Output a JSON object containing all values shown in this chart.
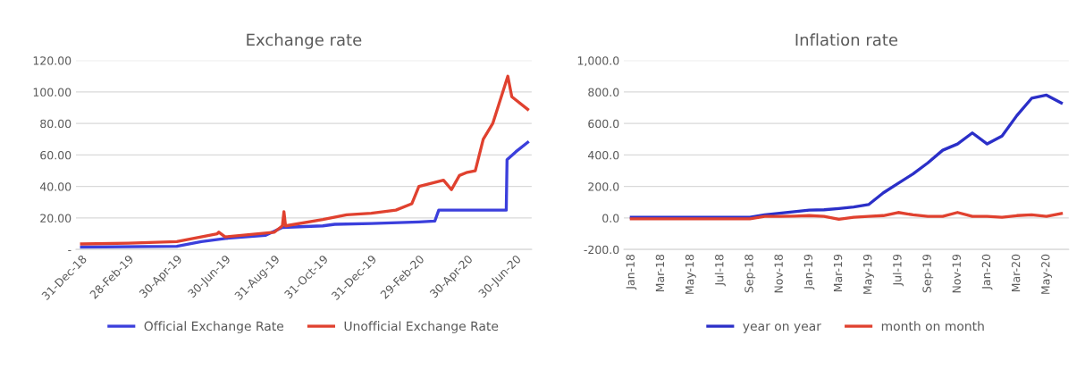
{
  "chart_data": [
    {
      "type": "line",
      "title": "Exchange rate",
      "grid": "y",
      "legend": "bottom",
      "line_style": "solid",
      "marker": "none",
      "xlim": [
        "2018-12-24",
        "2020-07-20"
      ],
      "xticks": [
        {
          "value": "2018-12-31",
          "label": "31-Dec-18"
        },
        {
          "value": "2019-02-28",
          "label": "28-Feb-19"
        },
        {
          "value": "2019-04-30",
          "label": "30-Apr-19"
        },
        {
          "value": "2019-06-30",
          "label": "30-Jun-19"
        },
        {
          "value": "2019-08-31",
          "label": "31-Aug-19"
        },
        {
          "value": "2019-10-31",
          "label": "31-Oct-19"
        },
        {
          "value": "2019-12-31",
          "label": "31-Dec-19"
        },
        {
          "value": "2020-02-29",
          "label": "29-Feb-20"
        },
        {
          "value": "2020-04-30",
          "label": "30-Apr-20"
        },
        {
          "value": "2020-06-30",
          "label": "30-Jun-20"
        }
      ],
      "ylim": [
        0,
        120
      ],
      "yticks": [
        {
          "value": 0,
          "label": "-"
        },
        {
          "value": 20,
          "label": "20.00"
        },
        {
          "value": 40,
          "label": "40.00"
        },
        {
          "value": 60,
          "label": "60.00"
        },
        {
          "value": 80,
          "label": "80.00"
        },
        {
          "value": 100,
          "label": "100.00"
        },
        {
          "value": 120,
          "label": "120.00"
        }
      ],
      "series": [
        {
          "name": "Official Exchange Rate",
          "color": "#3b3fdc",
          "x": [
            "2018-12-31",
            "2019-04-30",
            "2019-05-31",
            "2019-06-30",
            "2019-08-20",
            "2019-09-10",
            "2019-10-31",
            "2019-11-15",
            "2019-12-31",
            "2020-02-29",
            "2020-03-20",
            "2020-03-25",
            "2020-06-18",
            "2020-06-19",
            "2020-06-30",
            "2020-07-15"
          ],
          "values": [
            1.5,
            2,
            5,
            7,
            9,
            14,
            15,
            16,
            16.5,
            17.5,
            18,
            25,
            25,
            57,
            62,
            68
          ]
        },
        {
          "name": "Unofficial Exchange Rate",
          "color": "#e0412f",
          "x": [
            "2018-12-31",
            "2019-02-28",
            "2019-04-30",
            "2019-06-20",
            "2019-06-22",
            "2019-06-30",
            "2019-08-31",
            "2019-09-10",
            "2019-09-12",
            "2019-09-14",
            "2019-10-31",
            "2019-11-30",
            "2019-12-31",
            "2020-01-31",
            "2020-02-20",
            "2020-02-29",
            "2020-03-31",
            "2020-04-10",
            "2020-04-20",
            "2020-04-30",
            "2020-05-10",
            "2020-05-20",
            "2020-06-01",
            "2020-06-20",
            "2020-06-25",
            "2020-07-15"
          ],
          "values": [
            3.5,
            4,
            5,
            10,
            11,
            8,
            11,
            15,
            24,
            15,
            19,
            22,
            23,
            25,
            29,
            40,
            44,
            38,
            47,
            49,
            50,
            70,
            80,
            110,
            97,
            89
          ]
        }
      ]
    },
    {
      "type": "line",
      "title": "Inflation rate",
      "grid": "y",
      "legend": "bottom",
      "line_style": "solid",
      "marker": "none",
      "categories": [
        "Jan-18",
        null,
        "Mar-18",
        null,
        "May-18",
        null,
        "Jul-18",
        null,
        "Sep-18",
        null,
        "Nov-18",
        null,
        "Jan-19",
        null,
        "Mar-19",
        null,
        "May-19",
        null,
        "Jul-19",
        null,
        "Sep-19",
        null,
        "Nov-19",
        null,
        "Jan-20",
        null,
        "Mar-20",
        null,
        "May-20",
        null
      ],
      "ylim": [
        -200,
        1000
      ],
      "yticks": [
        {
          "value": -200,
          "label": "-200.0"
        },
        {
          "value": 0,
          "label": "0.0"
        },
        {
          "value": 200,
          "label": "200.0"
        },
        {
          "value": 400,
          "label": "400.0"
        },
        {
          "value": 600,
          "label": "600.0"
        },
        {
          "value": 800,
          "label": "800.0"
        },
        {
          "value": 1000,
          "label": "1,000.0"
        }
      ],
      "series": [
        {
          "name": "year on year",
          "color": "#2b2fc8",
          "values": [
            5,
            5,
            5,
            5,
            5,
            5,
            5,
            5,
            5,
            20,
            30,
            40,
            50,
            52,
            60,
            70,
            85,
            160,
            220,
            280,
            350,
            430,
            470,
            540,
            470,
            520,
            650,
            760,
            780,
            730
          ]
        },
        {
          "name": "month on month",
          "color": "#e0412f",
          "values": [
            -5,
            -5,
            -5,
            -5,
            -5,
            -5,
            -5,
            -5,
            -5,
            10,
            10,
            12,
            15,
            10,
            -8,
            5,
            10,
            15,
            35,
            20,
            10,
            10,
            35,
            10,
            10,
            5,
            15,
            20,
            10,
            28
          ]
        }
      ]
    }
  ]
}
